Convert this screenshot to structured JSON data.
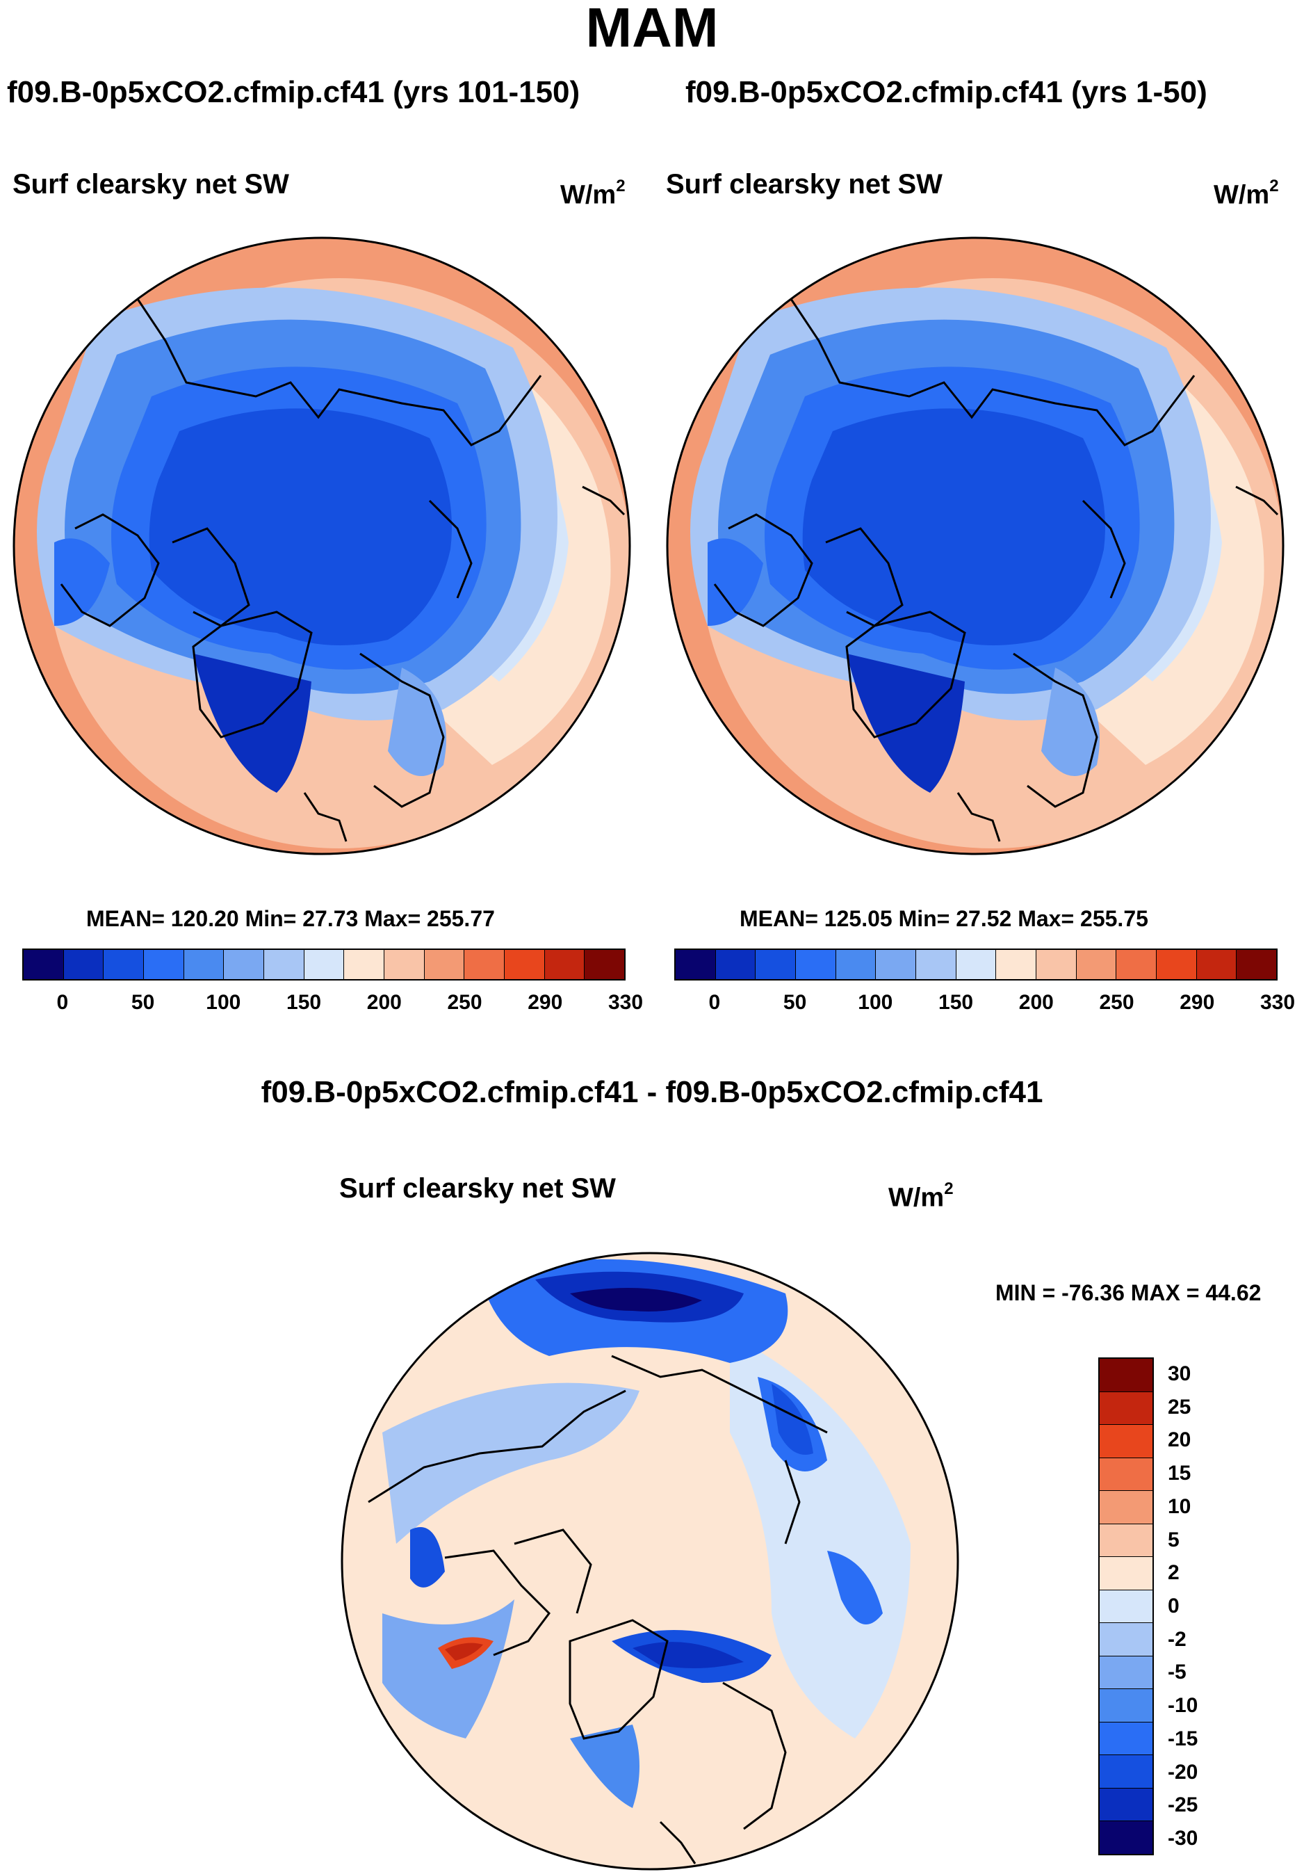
{
  "page_title": "MAM",
  "top_left": {
    "case_title": "f09.B-0p5xCO2.cfmip.cf41 (yrs 101-150)",
    "var_title": "Surf clearsky net SW",
    "units": "W/m",
    "units_exp": "2",
    "stats": "MEAN= 120.20  Min=  27.73  Max= 255.77"
  },
  "top_right": {
    "case_title": "f09.B-0p5xCO2.cfmip.cf41 (yrs 1-50)",
    "var_title": "Surf clearsky net SW",
    "units": "W/m",
    "units_exp": "2",
    "stats": "MEAN= 125.05  Min=  27.52  Max= 255.75"
  },
  "abs_colorbar": {
    "colors": [
      "#08036e",
      "#0a2fbf",
      "#1550e0",
      "#2a6ef5",
      "#4a8af0",
      "#7aa8f2",
      "#a8c6f5",
      "#d6e6fa",
      "#fde6d3",
      "#f9c4a8",
      "#f39a74",
      "#ef6e45",
      "#e8461d",
      "#c4260f",
      "#7d0603"
    ],
    "labels": [
      "0",
      "50",
      "100",
      "150",
      "200",
      "250",
      "290",
      "330"
    ]
  },
  "diff": {
    "title": "f09.B-0p5xCO2.cfmip.cf41 - f09.B-0p5xCO2.cfmip.cf41",
    "var_title": "Surf clearsky net SW",
    "units": "W/m",
    "units_exp": "2",
    "minmax": "MIN = -76.36 MAX =  44.62"
  },
  "diff_colorbar": {
    "colors": [
      "#7d0603",
      "#c4260f",
      "#e8461d",
      "#ef6e45",
      "#f39a74",
      "#f9c4a8",
      "#fde6d3",
      "#d6e6fa",
      "#a8c6f5",
      "#7aa8f2",
      "#4a8af0",
      "#2a6ef5",
      "#1550e0",
      "#0a2fbf",
      "#08036e"
    ],
    "labels": [
      "30",
      "25",
      "20",
      "15",
      "10",
      "5",
      "2",
      "0",
      "-2",
      "-5",
      "-10",
      "-15",
      "-20",
      "-25",
      "-30"
    ]
  }
}
